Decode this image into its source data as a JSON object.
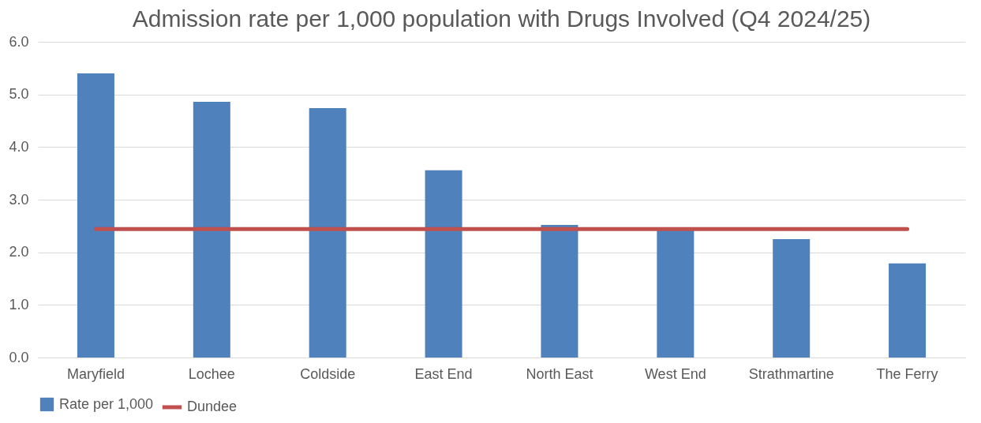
{
  "chart_data": {
    "type": "bar",
    "title": "Admission rate per 1,000 population with Drugs Involved (Q4 2024/25)",
    "categories": [
      "Maryfield",
      "Lochee",
      "Coldside",
      "East End",
      "North East",
      "West End",
      "Strathmartine",
      "The Ferry"
    ],
    "series": [
      {
        "name": "Rate per 1,000",
        "color": "#4f81bd",
        "values": [
          5.4,
          4.86,
          4.74,
          3.56,
          2.52,
          2.42,
          2.25,
          1.79
        ]
      },
      {
        "name": "Dundee",
        "type": "line",
        "color": "#c0504d",
        "values": [
          2.44,
          2.44,
          2.44,
          2.44,
          2.44,
          2.44,
          2.44,
          2.44
        ]
      }
    ],
    "ylim": [
      0,
      6
    ],
    "yticks": [
      {
        "value": 0,
        "label": "0.0"
      },
      {
        "value": 1,
        "label": "1.0"
      },
      {
        "value": 2,
        "label": "2.0"
      },
      {
        "value": 3,
        "label": "3.0"
      },
      {
        "value": 4,
        "label": "4.0"
      },
      {
        "value": 5,
        "label": "5.0"
      },
      {
        "value": 6,
        "label": "6.0"
      }
    ],
    "grid": "y",
    "legend": "bottom"
  }
}
